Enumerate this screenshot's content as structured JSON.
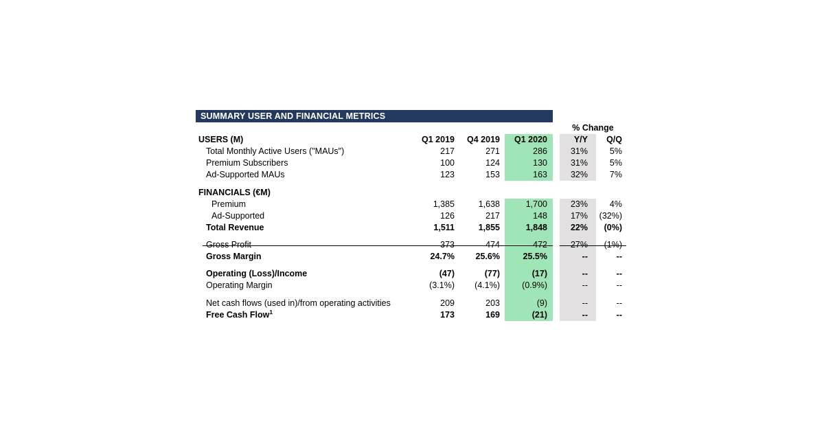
{
  "colors": {
    "header_bar_navy": "#24395E",
    "highlight_green": "#A0E5B8",
    "highlight_gray": "#E2E0E0",
    "text": "#000000",
    "title_text": "#FFFFFF"
  },
  "table": {
    "title": "SUMMARY USER AND FINANCIAL METRICS",
    "pct_change_label": "% Change",
    "highlighted_column": "Q1 2020",
    "rows": [
      {
        "type": "header",
        "label": "USERS (M)",
        "values": [
          "Q1 2019",
          "Q4 2019",
          "Q1 2020",
          "Y/Y",
          "Q/Q"
        ]
      },
      {
        "type": "data",
        "label": "Total Monthly Active Users (\"MAUs\")",
        "indent": 1,
        "values": [
          "217",
          "271",
          "286",
          "31%",
          "5%"
        ]
      },
      {
        "type": "data",
        "label": "Premium Subscribers",
        "indent": 1,
        "values": [
          "100",
          "124",
          "130",
          "31%",
          "5%"
        ]
      },
      {
        "type": "data",
        "label": "Ad-Supported MAUs",
        "indent": 1,
        "values": [
          "123",
          "153",
          "163",
          "32%",
          "7%"
        ]
      },
      {
        "type": "spacer",
        "height": 9
      },
      {
        "type": "section",
        "label": "FINANCIALS (€M)"
      },
      {
        "type": "data",
        "label": "Premium",
        "indent": 2,
        "values": [
          "1,385",
          "1,638",
          "1,700",
          "23%",
          "4%"
        ]
      },
      {
        "type": "data",
        "label": "Ad-Supported",
        "indent": 2,
        "rule_below": true,
        "values": [
          "126",
          "217",
          "148",
          "17%",
          "(32%)"
        ]
      },
      {
        "type": "data",
        "label": "Total Revenue",
        "indent": 1,
        "bold": true,
        "values": [
          "1,511",
          "1,855",
          "1,848",
          "22%",
          "(0%)"
        ]
      },
      {
        "type": "spacer",
        "height": 8
      },
      {
        "type": "data",
        "label": "Gross Profit",
        "indent": 1,
        "values": [
          "373",
          "474",
          "472",
          "27%",
          "(1%)"
        ]
      },
      {
        "type": "data",
        "label": "Gross Margin",
        "indent": 1,
        "bold": true,
        "values": [
          "24.7%",
          "25.6%",
          "25.5%",
          "--",
          "--"
        ]
      },
      {
        "type": "spacer",
        "height": 8
      },
      {
        "type": "data",
        "label": "Operating (Loss)/Income",
        "indent": 1,
        "bold": true,
        "values": [
          "(47)",
          "(77)",
          "(17)",
          "--",
          "--"
        ]
      },
      {
        "type": "data",
        "label": "Operating Margin",
        "indent": 1,
        "values": [
          "(3.1%)",
          "(4.1%)",
          "(0.9%)",
          "--",
          "--"
        ]
      },
      {
        "type": "spacer",
        "height": 9
      },
      {
        "type": "data",
        "label": "Net cash flows (used in)/from operating activities",
        "indent": 1,
        "values": [
          "209",
          "203",
          "(9)",
          "--",
          "--"
        ]
      },
      {
        "type": "data",
        "label": "Free Cash Flow",
        "sup": "1",
        "indent": 1,
        "bold": true,
        "values": [
          "173",
          "169",
          "(21)",
          "--",
          "--"
        ]
      }
    ]
  }
}
